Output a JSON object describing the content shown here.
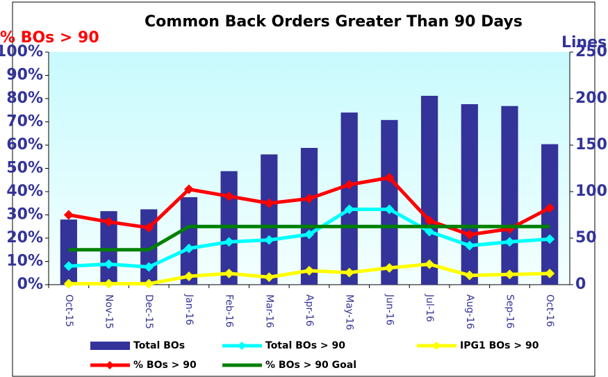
{
  "chart_data": {
    "type": "combo",
    "title": "Common Back Orders Greater Than 90 Days",
    "y_label": "% BOs > 90",
    "y2_label": "Lines",
    "categories": [
      "Oct-15",
      "Nov-15",
      "Dec-15",
      "Jan-16",
      "Feb-16",
      "Mar-16",
      "Apr-16",
      "May-16",
      "Jun-16",
      "Jul-16",
      "Aug-16",
      "Sep-16",
      "Oct-16"
    ],
    "series": [
      {
        "name": "Total BOs",
        "type": "bar",
        "axis": "y2",
        "color": "#333399",
        "values": [
          70,
          79,
          81,
          94,
          122,
          140,
          147,
          185,
          177,
          203,
          194,
          192,
          151
        ]
      },
      {
        "name": "Total BOs > 90",
        "type": "line",
        "axis": "y2",
        "color": "#00ffff",
        "marker": "diamond",
        "values": [
          20,
          22,
          19,
          39,
          46,
          48,
          54,
          81,
          81,
          57,
          42,
          46,
          49
        ]
      },
      {
        "name": "IPG1 BOs > 90",
        "type": "line",
        "axis": "y2",
        "color": "#ffff00",
        "marker": "diamond",
        "values": [
          1,
          1,
          1,
          9,
          12,
          8,
          15,
          13,
          18,
          22,
          10,
          11,
          12
        ]
      },
      {
        "name": "% BOs > 90",
        "type": "line",
        "axis": "y",
        "color": "#ff0000",
        "marker": "diamond",
        "values": [
          30,
          27,
          24.5,
          41,
          38,
          35,
          37,
          43,
          46,
          27.5,
          21.5,
          24,
          33
        ]
      },
      {
        "name": "% BOs > 90 Goal",
        "type": "line",
        "axis": "y",
        "color": "#008000",
        "values": [
          15,
          15,
          15,
          25,
          25,
          25,
          25,
          25,
          25,
          25,
          25,
          25,
          25
        ]
      }
    ],
    "ylim": [
      0,
      100
    ],
    "yticks": [
      {
        "value": 0,
        "label": "0%"
      },
      {
        "value": 10,
        "label": "10%"
      },
      {
        "value": 20,
        "label": "20%"
      },
      {
        "value": 30,
        "label": "30%"
      },
      {
        "value": 40,
        "label": "40%"
      },
      {
        "value": 50,
        "label": "50%"
      },
      {
        "value": 60,
        "label": "60%"
      },
      {
        "value": 70,
        "label": "70%"
      },
      {
        "value": 80,
        "label": "80%"
      },
      {
        "value": 90,
        "label": "90%"
      },
      {
        "value": 100,
        "label": "100%"
      }
    ],
    "y2lim": [
      0,
      250
    ],
    "y2ticks": [
      0,
      50,
      100,
      150,
      200,
      250
    ]
  }
}
